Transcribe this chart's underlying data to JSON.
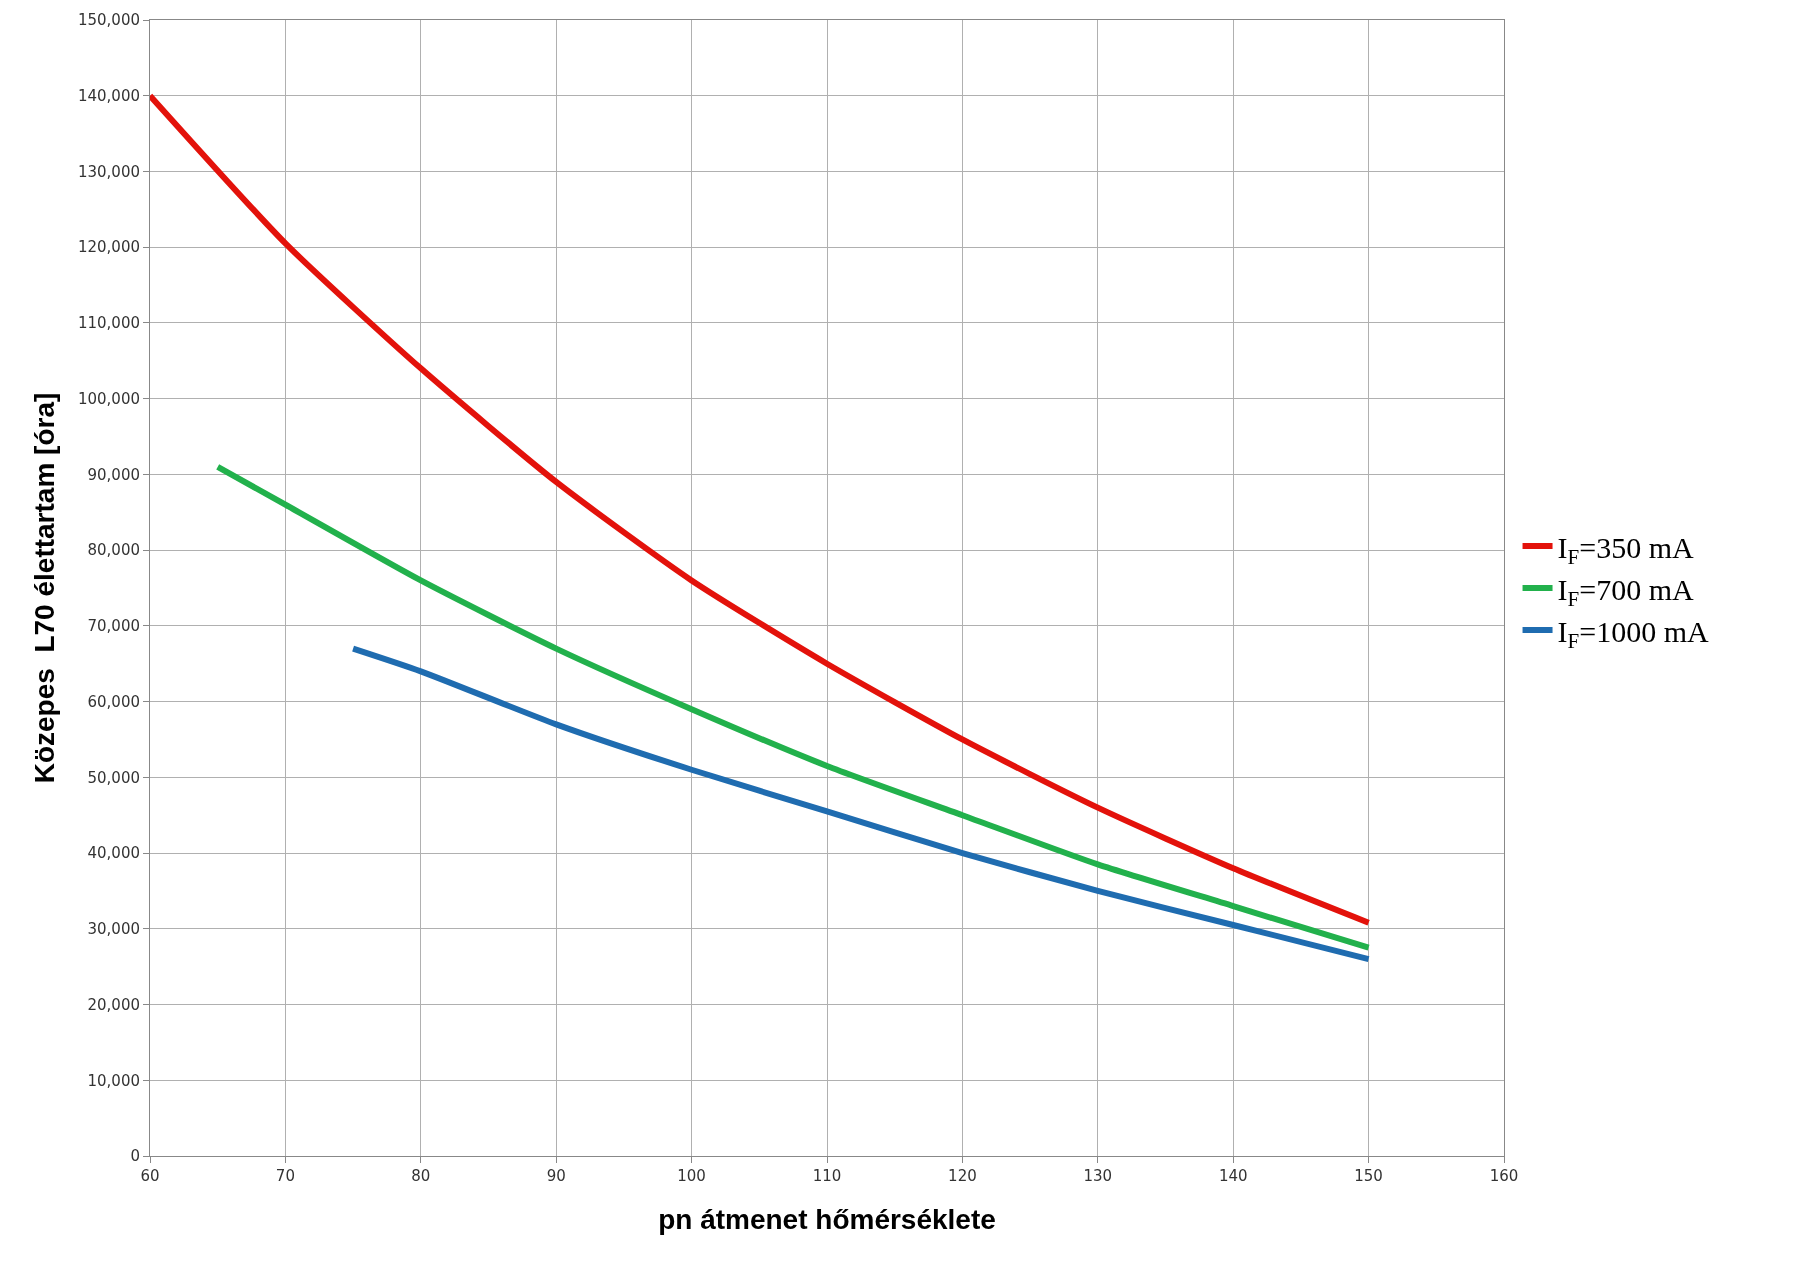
{
  "chart_data": {
    "type": "line",
    "xlabel": "pn átmenet hőmérséklete",
    "ylabel": "Közepes  L70 élettartam [óra]",
    "series": [
      {
        "name": "I$_{F}$=350 mA",
        "color": "#e3120b",
        "x": [
          60,
          70,
          80,
          90,
          100,
          110,
          120,
          130,
          140,
          150
        ],
        "values": [
          140000,
          120500,
          104000,
          89000,
          76000,
          65000,
          55000,
          46000,
          38000,
          30800
        ]
      },
      {
        "name": "I$_{F}$=700 mA",
        "color": "#22b14c",
        "x": [
          65,
          70,
          80,
          90,
          100,
          110,
          120,
          130,
          140,
          150
        ],
        "values": [
          91000,
          86000,
          76000,
          67000,
          59000,
          51500,
          45000,
          38500,
          33000,
          27500
        ]
      },
      {
        "name": "I$_{F}$=1000 mA",
        "color": "#1f6cb0",
        "x": [
          75,
          80,
          90,
          100,
          110,
          120,
          130,
          140,
          150
        ],
        "values": [
          67000,
          64000,
          57000,
          51000,
          45500,
          40000,
          35000,
          30500,
          26000
        ]
      }
    ],
    "xlim": [
      60,
      160
    ],
    "xticks": [
      60,
      70,
      80,
      90,
      100,
      110,
      120,
      130,
      140,
      150,
      160
    ],
    "ylim": [
      0,
      150000
    ],
    "yticks": [
      0,
      {
        "value": 10000,
        "label": "10,000"
      },
      {
        "value": 20000,
        "label": "20,000"
      },
      {
        "value": 30000,
        "label": "30,000"
      },
      {
        "value": 40000,
        "label": "40,000"
      },
      {
        "value": 50000,
        "label": "50,000"
      },
      {
        "value": 60000,
        "label": "60,000"
      },
      {
        "value": 70000,
        "label": "70,000"
      },
      {
        "value": 80000,
        "label": "80,000"
      },
      {
        "value": 90000,
        "label": "90,000"
      },
      {
        "value": 100000,
        "label": "100,000"
      },
      {
        "value": 110000,
        "label": "110,000"
      },
      {
        "value": 120000,
        "label": "120,000"
      },
      {
        "value": 130000,
        "label": "130,000"
      },
      {
        "value": 140000,
        "label": "140,000"
      },
      {
        "value": 150000,
        "label": "150,000"
      }
    ],
    "grid": true,
    "legend": "right",
    "marker": "none",
    "line_style": "solid"
  }
}
